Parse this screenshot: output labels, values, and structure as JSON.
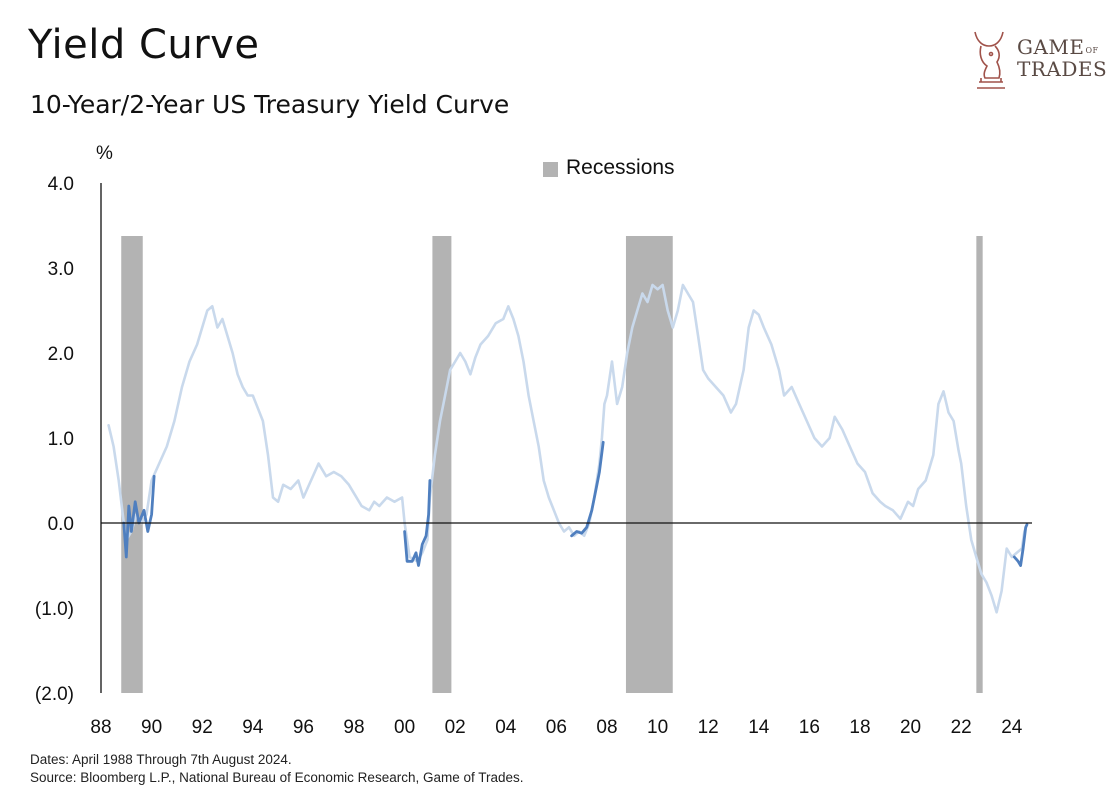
{
  "header": {
    "title": "Yield Curve",
    "subtitle": "10-Year/2-Year US Treasury Yield Curve"
  },
  "logo": {
    "line1": "GAME",
    "line1_suffix": "OF",
    "line2": "TRADES"
  },
  "footer": {
    "dates": "Dates: April 1988 Through 7th August 2024.",
    "source": "Source: Bloomberg L.P., National Bureau of Economic Research, Game of Trades."
  },
  "colors": {
    "main_line": "#c9d9ec",
    "highlight_line": "#4f7fbf",
    "recession": "#b3b3b3",
    "axis": "#111111"
  },
  "chart_data": {
    "type": "line",
    "title": "10-Year/2-Year US Treasury Yield Curve",
    "ylabel": "%",
    "xlabel": "",
    "ylim": [
      -2.0,
      4.0
    ],
    "xlim": [
      1988.0,
      2024.8
    ],
    "y_ticks": [
      {
        "value": 4.0,
        "label": "4.0"
      },
      {
        "value": 3.0,
        "label": "3.0"
      },
      {
        "value": 2.0,
        "label": "2.0"
      },
      {
        "value": 1.0,
        "label": "1.0"
      },
      {
        "value": 0.0,
        "label": "0.0"
      },
      {
        "value": -1.0,
        "label": "(1.0)"
      },
      {
        "value": -2.0,
        "label": "(2.0)"
      }
    ],
    "x_ticks": [
      {
        "value": 1988,
        "label": "88"
      },
      {
        "value": 1990,
        "label": "90"
      },
      {
        "value": 1992,
        "label": "92"
      },
      {
        "value": 1994,
        "label": "94"
      },
      {
        "value": 1996,
        "label": "96"
      },
      {
        "value": 1998,
        "label": "98"
      },
      {
        "value": 2000,
        "label": "00"
      },
      {
        "value": 2002,
        "label": "02"
      },
      {
        "value": 2004,
        "label": "04"
      },
      {
        "value": 2006,
        "label": "06"
      },
      {
        "value": 2008,
        "label": "08"
      },
      {
        "value": 2010,
        "label": "10"
      },
      {
        "value": 2012,
        "label": "12"
      },
      {
        "value": 2014,
        "label": "14"
      },
      {
        "value": 2016,
        "label": "16"
      },
      {
        "value": 2018,
        "label": "18"
      },
      {
        "value": 2020,
        "label": "20"
      },
      {
        "value": 2022,
        "label": "22"
      },
      {
        "value": 2024,
        "label": "24"
      }
    ],
    "legend": {
      "label": "Recessions",
      "placement": "top-center"
    },
    "recessions": [
      {
        "start": 1988.8,
        "end": 1989.65
      },
      {
        "start": 2001.1,
        "end": 2001.85
      },
      {
        "start": 2008.75,
        "end": 2010.6
      },
      {
        "start": 2022.6,
        "end": 2022.85
      }
    ],
    "series": [
      {
        "values": [
          [
            1988.3,
            1.15
          ],
          [
            1988.5,
            0.9
          ],
          [
            1988.7,
            0.5
          ],
          [
            1988.9,
            0.0
          ],
          [
            1989.0,
            -0.2
          ],
          [
            1989.2,
            -0.1
          ],
          [
            1989.4,
            0.1
          ],
          [
            1989.6,
            0.0
          ],
          [
            1989.8,
            0.1
          ],
          [
            1990.0,
            0.5
          ],
          [
            1990.3,
            0.7
          ],
          [
            1990.6,
            0.9
          ],
          [
            1990.9,
            1.2
          ],
          [
            1991.2,
            1.6
          ],
          [
            1991.5,
            1.9
          ],
          [
            1991.8,
            2.1
          ],
          [
            1992.0,
            2.3
          ],
          [
            1992.2,
            2.5
          ],
          [
            1992.4,
            2.55
          ],
          [
            1992.6,
            2.3
          ],
          [
            1992.8,
            2.4
          ],
          [
            1993.0,
            2.2
          ],
          [
            1993.2,
            2.0
          ],
          [
            1993.4,
            1.75
          ],
          [
            1993.6,
            1.6
          ],
          [
            1993.8,
            1.5
          ],
          [
            1994.0,
            1.5
          ],
          [
            1994.2,
            1.35
          ],
          [
            1994.4,
            1.2
          ],
          [
            1994.6,
            0.8
          ],
          [
            1994.8,
            0.3
          ],
          [
            1995.0,
            0.25
          ],
          [
            1995.2,
            0.45
          ],
          [
            1995.5,
            0.4
          ],
          [
            1995.8,
            0.5
          ],
          [
            1996.0,
            0.3
          ],
          [
            1996.3,
            0.5
          ],
          [
            1996.6,
            0.7
          ],
          [
            1996.9,
            0.55
          ],
          [
            1997.2,
            0.6
          ],
          [
            1997.5,
            0.55
          ],
          [
            1997.8,
            0.45
          ],
          [
            1998.0,
            0.35
          ],
          [
            1998.3,
            0.2
          ],
          [
            1998.6,
            0.15
          ],
          [
            1998.8,
            0.25
          ],
          [
            1999.0,
            0.2
          ],
          [
            1999.3,
            0.3
          ],
          [
            1999.6,
            0.25
          ],
          [
            1999.9,
            0.3
          ],
          [
            2000.0,
            0.0
          ],
          [
            2000.2,
            -0.4
          ],
          [
            2000.5,
            -0.45
          ],
          [
            2000.7,
            -0.35
          ],
          [
            2000.9,
            -0.2
          ],
          [
            2001.0,
            0.3
          ],
          [
            2001.2,
            0.8
          ],
          [
            2001.4,
            1.2
          ],
          [
            2001.6,
            1.5
          ],
          [
            2001.8,
            1.8
          ],
          [
            2002.0,
            1.9
          ],
          [
            2002.2,
            2.0
          ],
          [
            2002.4,
            1.9
          ],
          [
            2002.6,
            1.75
          ],
          [
            2002.8,
            1.95
          ],
          [
            2003.0,
            2.1
          ],
          [
            2003.3,
            2.2
          ],
          [
            2003.6,
            2.35
          ],
          [
            2003.9,
            2.4
          ],
          [
            2004.1,
            2.55
          ],
          [
            2004.3,
            2.4
          ],
          [
            2004.5,
            2.2
          ],
          [
            2004.7,
            1.9
          ],
          [
            2004.9,
            1.5
          ],
          [
            2005.1,
            1.2
          ],
          [
            2005.3,
            0.9
          ],
          [
            2005.5,
            0.5
          ],
          [
            2005.7,
            0.3
          ],
          [
            2005.9,
            0.15
          ],
          [
            2006.1,
            0.0
          ],
          [
            2006.3,
            -0.1
          ],
          [
            2006.5,
            -0.05
          ],
          [
            2006.7,
            -0.15
          ],
          [
            2006.9,
            -0.1
          ],
          [
            2007.1,
            -0.15
          ],
          [
            2007.3,
            0.0
          ],
          [
            2007.5,
            0.3
          ],
          [
            2007.7,
            0.7
          ],
          [
            2007.8,
            1.0
          ],
          [
            2007.9,
            1.4
          ],
          [
            2008.0,
            1.5
          ],
          [
            2008.2,
            1.9
          ],
          [
            2008.4,
            1.4
          ],
          [
            2008.6,
            1.6
          ],
          [
            2008.8,
            2.0
          ],
          [
            2009.0,
            2.3
          ],
          [
            2009.2,
            2.5
          ],
          [
            2009.4,
            2.7
          ],
          [
            2009.6,
            2.6
          ],
          [
            2009.8,
            2.8
          ],
          [
            2010.0,
            2.75
          ],
          [
            2010.2,
            2.8
          ],
          [
            2010.4,
            2.5
          ],
          [
            2010.6,
            2.3
          ],
          [
            2010.8,
            2.5
          ],
          [
            2011.0,
            2.8
          ],
          [
            2011.2,
            2.7
          ],
          [
            2011.4,
            2.6
          ],
          [
            2011.6,
            2.2
          ],
          [
            2011.8,
            1.8
          ],
          [
            2012.0,
            1.7
          ],
          [
            2012.3,
            1.6
          ],
          [
            2012.6,
            1.5
          ],
          [
            2012.9,
            1.3
          ],
          [
            2013.1,
            1.4
          ],
          [
            2013.4,
            1.8
          ],
          [
            2013.6,
            2.3
          ],
          [
            2013.8,
            2.5
          ],
          [
            2014.0,
            2.45
          ],
          [
            2014.2,
            2.3
          ],
          [
            2014.5,
            2.1
          ],
          [
            2014.8,
            1.8
          ],
          [
            2015.0,
            1.5
          ],
          [
            2015.3,
            1.6
          ],
          [
            2015.6,
            1.4
          ],
          [
            2015.9,
            1.2
          ],
          [
            2016.2,
            1.0
          ],
          [
            2016.5,
            0.9
          ],
          [
            2016.8,
            1.0
          ],
          [
            2017.0,
            1.25
          ],
          [
            2017.3,
            1.1
          ],
          [
            2017.6,
            0.9
          ],
          [
            2017.9,
            0.7
          ],
          [
            2018.2,
            0.6
          ],
          [
            2018.5,
            0.35
          ],
          [
            2018.8,
            0.25
          ],
          [
            2019.0,
            0.2
          ],
          [
            2019.3,
            0.15
          ],
          [
            2019.6,
            0.05
          ],
          [
            2019.9,
            0.25
          ],
          [
            2020.1,
            0.2
          ],
          [
            2020.3,
            0.4
          ],
          [
            2020.6,
            0.5
          ],
          [
            2020.9,
            0.8
          ],
          [
            2021.1,
            1.4
          ],
          [
            2021.3,
            1.55
          ],
          [
            2021.5,
            1.3
          ],
          [
            2021.7,
            1.2
          ],
          [
            2021.9,
            0.85
          ],
          [
            2022.0,
            0.7
          ],
          [
            2022.2,
            0.2
          ],
          [
            2022.4,
            -0.2
          ],
          [
            2022.6,
            -0.4
          ],
          [
            2022.8,
            -0.6
          ],
          [
            2023.0,
            -0.7
          ],
          [
            2023.2,
            -0.85
          ],
          [
            2023.4,
            -1.05
          ],
          [
            2023.6,
            -0.8
          ],
          [
            2023.8,
            -0.3
          ],
          [
            2024.0,
            -0.4
          ],
          [
            2024.2,
            -0.35
          ],
          [
            2024.4,
            -0.3
          ],
          [
            2024.5,
            -0.1
          ],
          [
            2024.6,
            -0.02
          ]
        ]
      },
      {
        "values": [
          [
            1988.9,
            0.0
          ],
          [
            1989.0,
            -0.4
          ],
          [
            1989.1,
            0.2
          ],
          [
            1989.2,
            -0.1
          ],
          [
            1989.35,
            0.25
          ],
          [
            1989.5,
            0.0
          ],
          [
            1989.7,
            0.15
          ],
          [
            1989.85,
            -0.1
          ],
          [
            1990.0,
            0.1
          ],
          [
            1990.1,
            0.55
          ]
        ]
      },
      {
        "values": [
          [
            2000.0,
            -0.1
          ],
          [
            2000.1,
            -0.45
          ],
          [
            2000.3,
            -0.45
          ],
          [
            2000.45,
            -0.35
          ],
          [
            2000.55,
            -0.5
          ],
          [
            2000.7,
            -0.25
          ],
          [
            2000.85,
            -0.15
          ],
          [
            2000.95,
            0.1
          ],
          [
            2001.0,
            0.5
          ]
        ]
      },
      {
        "values": [
          [
            2006.6,
            -0.15
          ],
          [
            2006.8,
            -0.1
          ],
          [
            2007.0,
            -0.12
          ],
          [
            2007.2,
            -0.05
          ],
          [
            2007.4,
            0.15
          ],
          [
            2007.6,
            0.45
          ],
          [
            2007.7,
            0.6
          ],
          [
            2007.85,
            0.95
          ]
        ]
      },
      {
        "values": [
          [
            2024.1,
            -0.4
          ],
          [
            2024.25,
            -0.45
          ],
          [
            2024.35,
            -0.5
          ],
          [
            2024.45,
            -0.3
          ],
          [
            2024.55,
            -0.05
          ],
          [
            2024.6,
            -0.02
          ]
        ]
      }
    ]
  }
}
